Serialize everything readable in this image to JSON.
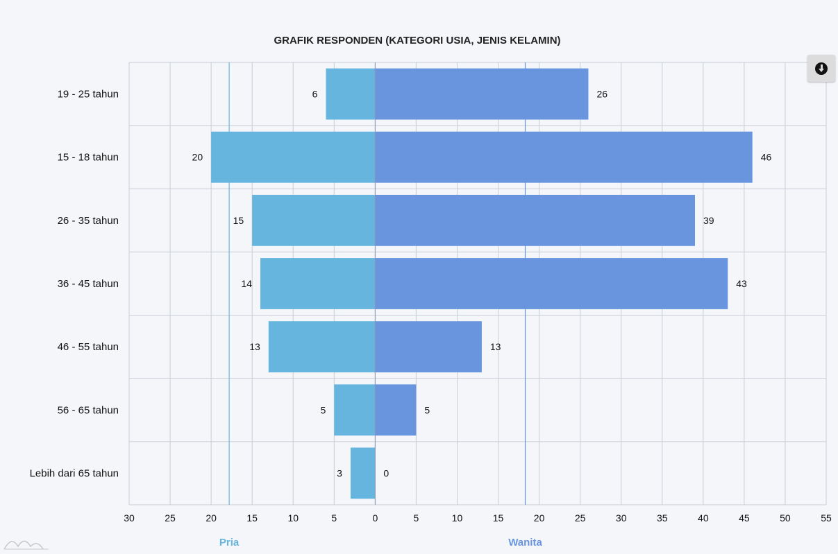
{
  "chart_data": {
    "type": "bar",
    "orientation": "horizontal",
    "layout": "diverging",
    "title": "GRAFIK RESPONDEN (KATEGORI USIA, JENIS KELAMIN)",
    "categories": [
      "19 - 25 tahun",
      "15 - 18 tahun",
      "26 - 35 tahun",
      "36 - 45 tahun",
      "46 - 55 tahun",
      "56 - 65 tahun",
      "Lebih dari 65 tahun"
    ],
    "series": [
      {
        "name": "Pria",
        "side": "left",
        "color": "#66b5de",
        "values": [
          6,
          20,
          15,
          14,
          13,
          5,
          3
        ],
        "average": 17.8
      },
      {
        "name": "Wanita",
        "side": "right",
        "color": "#6895de",
        "values": [
          26,
          46,
          39,
          43,
          13,
          5,
          0
        ],
        "average": 18.3
      }
    ],
    "xlim": [
      -30,
      55
    ],
    "x_ticks": [
      -30,
      -25,
      -20,
      -15,
      -10,
      -5,
      0,
      5,
      10,
      15,
      20,
      25,
      30,
      35,
      40,
      45,
      50,
      55
    ],
    "xlabel": "",
    "ylabel": "",
    "grid": true,
    "legend": "none"
  },
  "toolbar": {
    "download_icon": "download-icon"
  }
}
